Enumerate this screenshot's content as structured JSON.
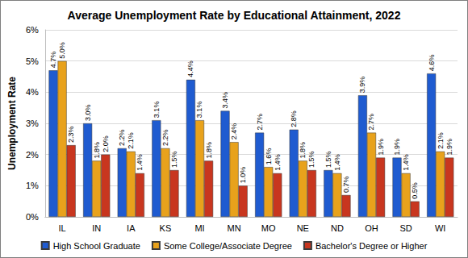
{
  "chart_data": {
    "type": "bar",
    "title": "Average Unemployment Rate by Educational Attainment, 2022",
    "y_label": "Unemployment Rate",
    "categories": [
      "IL",
      "IN",
      "IA",
      "KS",
      "MI",
      "MN",
      "MO",
      "NE",
      "ND",
      "OH",
      "SD",
      "WI"
    ],
    "series": [
      {
        "name": "High School Graduate",
        "color": "#1F5BD0",
        "values": [
          4.7,
          3.0,
          2.2,
          3.1,
          4.4,
          3.4,
          2.7,
          2.8,
          1.5,
          3.9,
          1.9,
          4.6
        ],
        "value_labels": [
          "4.7%",
          "3.0%",
          "2.2%",
          "3.1%",
          "4.4%",
          "3.4%",
          "2.7%",
          "2.8%",
          "1.5%",
          "3.9%",
          "1.9%",
          "4.6%"
        ]
      },
      {
        "name": "Some College/Associate Degree",
        "color": "#E8A21C",
        "values": [
          5.0,
          1.8,
          2.1,
          2.2,
          3.1,
          2.4,
          1.6,
          1.8,
          1.4,
          2.7,
          1.4,
          2.1
        ],
        "value_labels": [
          "5.0%",
          "1.8%",
          "2.1%",
          "2.2%",
          "3.1%",
          "2.4%",
          "1.6%",
          "1.8%",
          "1.4%",
          "2.7%",
          "1.4%",
          "2.1%"
        ]
      },
      {
        "name": "Bachelor's Degree or Higher",
        "color": "#C8361F",
        "values": [
          2.3,
          2.0,
          1.4,
          1.5,
          1.8,
          1.0,
          1.4,
          1.5,
          0.7,
          1.9,
          0.5,
          1.9
        ],
        "value_labels": [
          "2.3%",
          "2.0%",
          "1.4%",
          "1.5%",
          "1.8%",
          "1.0%",
          "1.4%",
          "1.5%",
          "0.7%",
          "1.9%",
          "0.5%",
          "1.9%"
        ]
      }
    ],
    "ylim": [
      0,
      6
    ],
    "yticks": [
      {
        "value": 0,
        "label": "0%"
      },
      {
        "value": 1,
        "label": "1%"
      },
      {
        "value": 2,
        "label": "2%"
      },
      {
        "value": 3,
        "label": "3%"
      },
      {
        "value": 4,
        "label": "4%"
      },
      {
        "value": 5,
        "label": "5%"
      },
      {
        "value": 6,
        "label": "6%"
      }
    ],
    "grid": true,
    "legend": "bottom",
    "data_labels": true
  }
}
